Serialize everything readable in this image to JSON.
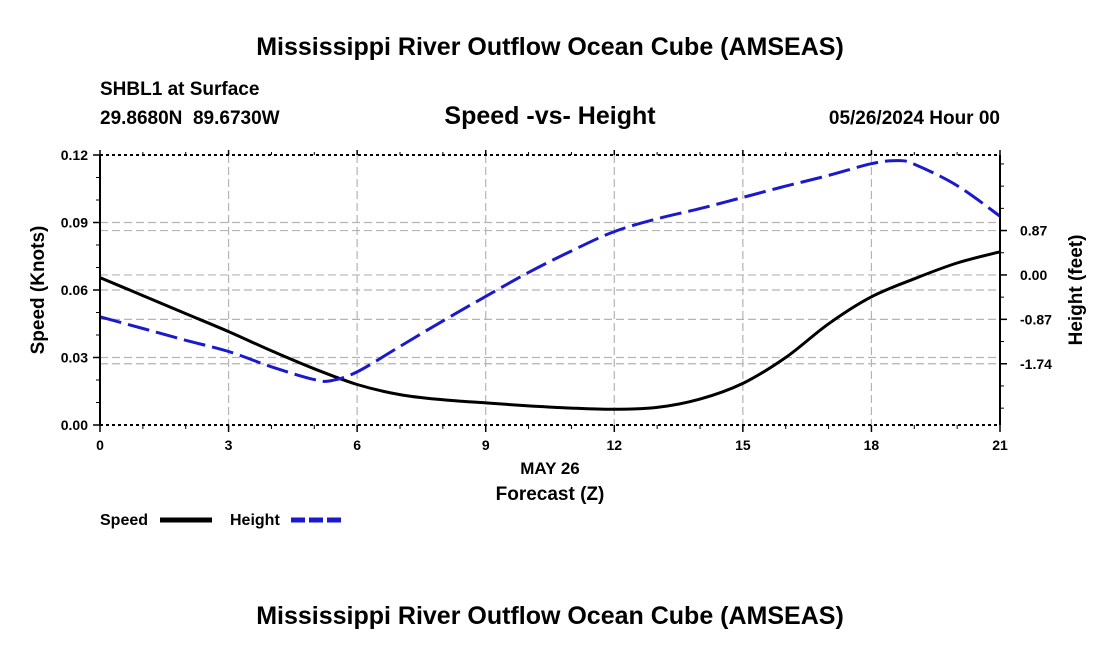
{
  "header": {
    "title": "Mississippi River Outflow Ocean Cube (AMSEAS)",
    "station": "SHBL1 at Surface",
    "coords": "29.8680N  89.6730W",
    "subtitle": "Speed -vs- Height",
    "datetime": "05/26/2024 Hour 00"
  },
  "footer": {
    "title": "Mississippi River Outflow Ocean Cube (AMSEAS)"
  },
  "legend": {
    "speed_label": "Speed",
    "height_label": "Height"
  },
  "colors": {
    "speed": "#000000",
    "height": "#1a1acc",
    "grid": "#b4b4b4"
  },
  "chart_data": {
    "type": "line",
    "title": "Speed -vs- Height",
    "xlabel": "Forecast (Z)",
    "xlabel_date": "MAY 26",
    "ylabel": "Speed (Knots)",
    "y2label": "Height (feet)",
    "xlim": [
      0,
      21
    ],
    "ylim": [
      0,
      0.12
    ],
    "y2lim": [
      -2.94,
      2.35
    ],
    "x_ticks": [
      "0",
      "3",
      "6",
      "9",
      "12",
      "15",
      "18",
      "21"
    ],
    "y_ticks": [
      "0.00",
      "0.03",
      "0.06",
      "0.09",
      "0.12"
    ],
    "y2_ticks": [
      "-1.74",
      "-0.87",
      "0.00",
      "0.87"
    ],
    "x_tick_values": [
      0,
      3,
      6,
      9,
      12,
      15,
      18,
      21
    ],
    "y_tick_values": [
      0,
      0.03,
      0.06,
      0.09,
      0.12
    ],
    "y2_tick_values": [
      -1.74,
      -0.87,
      0.0,
      0.87
    ],
    "grid": true,
    "series": [
      {
        "name": "Speed",
        "axis": "left",
        "style": "solid",
        "x": [
          0,
          1,
          2,
          3,
          4,
          5,
          6,
          7,
          8,
          9,
          10,
          11,
          12,
          13,
          14,
          15,
          16,
          17,
          18,
          19,
          20,
          21
        ],
        "values": [
          0.0655,
          0.0575,
          0.0495,
          0.0415,
          0.033,
          0.025,
          0.018,
          0.0135,
          0.0112,
          0.0098,
          0.0085,
          0.0075,
          0.007,
          0.0078,
          0.0115,
          0.0185,
          0.03,
          0.045,
          0.057,
          0.065,
          0.072,
          0.077
        ]
      },
      {
        "name": "Height",
        "axis": "right",
        "style": "dashed",
        "x": [
          0,
          1,
          2,
          3,
          4,
          5,
          5.4,
          6,
          7,
          8,
          9,
          10,
          11,
          12,
          13,
          14,
          15,
          16,
          17,
          18,
          18.6,
          19,
          20,
          21
        ],
        "values": [
          -0.82,
          -1.05,
          -1.28,
          -1.5,
          -1.8,
          -2.05,
          -2.07,
          -1.9,
          -1.4,
          -0.9,
          -0.42,
          0.05,
          0.47,
          0.85,
          1.1,
          1.3,
          1.52,
          1.74,
          1.95,
          2.18,
          2.24,
          2.17,
          1.75,
          1.15
        ]
      }
    ]
  }
}
